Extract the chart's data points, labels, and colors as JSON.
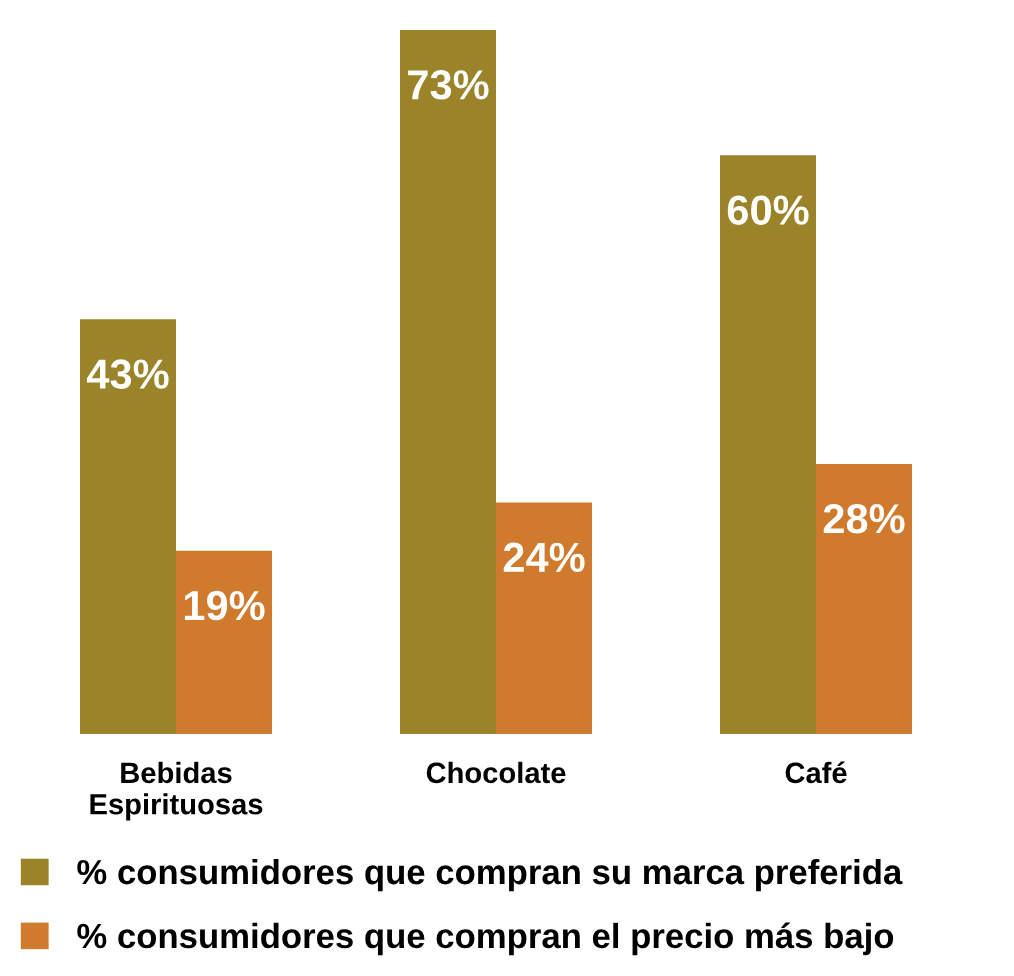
{
  "chart_data": {
    "type": "bar",
    "categories": [
      "Bebidas\nEspirituosas",
      "Chocolate",
      "Café"
    ],
    "series": [
      {
        "name": "% consumidores que compran su marca preferida",
        "color": "#9a8328",
        "values": [
          43,
          73,
          60
        ],
        "value_labels": [
          "43%",
          "73%",
          "60%"
        ]
      },
      {
        "name": "% consumidores que compran el precio más bajo",
        "color": "#d07a2e",
        "values": [
          19,
          24,
          28
        ],
        "value_labels": [
          "19%",
          "24%",
          "28%"
        ]
      }
    ],
    "legend": "bottom",
    "grid": false
  }
}
